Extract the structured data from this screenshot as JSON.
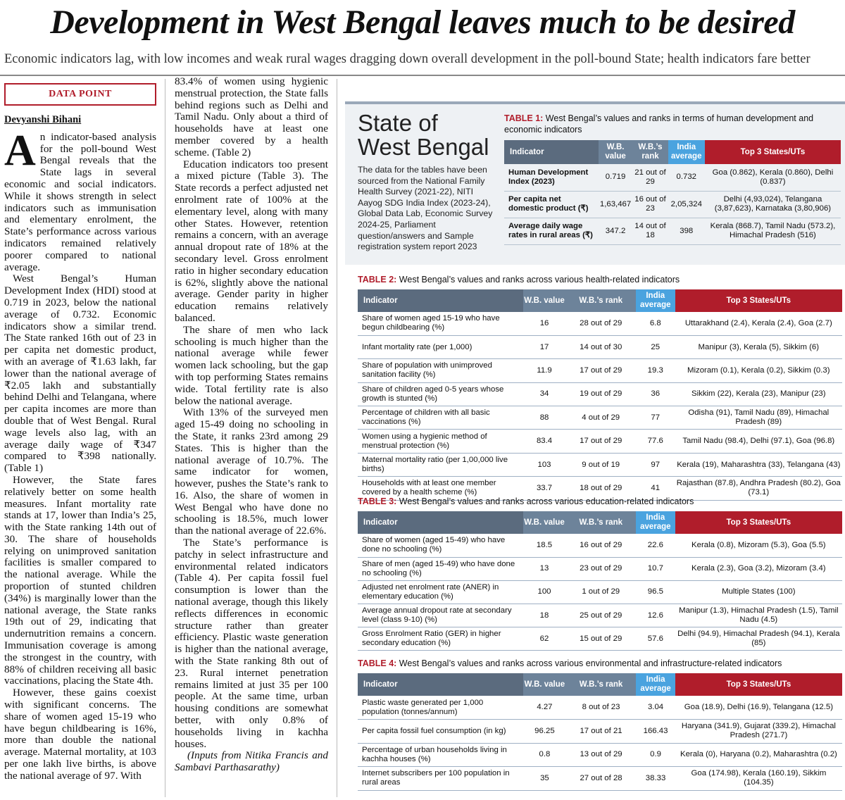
{
  "headline": "Development in West Bengal leaves much to be desired",
  "subhead": "Economic indicators lag, with low incomes and weak rural wages dragging down overall development in the poll-bound State; health indicators fare better",
  "datapoint_label": "DATA POINT",
  "byline": "Devyanshi Bihani",
  "dropcap": "A",
  "article": {
    "col1": [
      "n indicator-based analysis for the poll-bound West Bengal reveals that the State lags in several economic and social indicators. While it shows strength in select indicators such as immunisation and elementary enrolment, the State’s performance across various indicators remained relatively poorer compared to national average.",
      "West Bengal’s Human Development Index (HDI) stood at 0.719 in 2023, below the national average of 0.732. Economic indicators show a similar trend. The State ranked 16th out of 23 in per capita net domestic product, with an average of ₹1.63 lakh, far lower than the national average of ₹2.05 lakh and substantially behind Delhi and Telangana, where per capita incomes are more than double that of West Bengal. Rural wage levels also lag, with an average daily wage of ₹347 compared to ₹398 nationally. (Table 1)",
      "However, the State fares relatively better on some health measures. Infant mortality rate stands at 17, lower than India’s 25, with the State ranking 14th out of 30. The share of households relying on unimproved sanitation facilities is smaller compared to the national average. While the proportion of stunted children (34%) is marginally lower than the national average, the State ranks 19th out of 29, indicating that undernutrition remains a concern. Immunisation coverage is among the strongest in the country, with 88% of children receiving all basic vaccinations, placing the State 4th.",
      "However, these gains coexist with significant concerns. The share of women aged 15-19 who have begun childbearing is 16%, more than double the national average. Maternal mortality, at 103 per one lakh live births, is above the national average of 97. With"
    ],
    "col2": [
      "83.4% of women using hygienic menstrual protection, the State falls behind regions such as Delhi and Tamil Nadu. Only about a third of households have at least one member covered by a health scheme. (Table 2)",
      "Education indicators too present a mixed picture (Table 3). The State records a perfect adjusted net enrolment rate of 100% at the elementary level, along with many other States. However, retention remains a concern, with an average annual dropout rate of 18% at the secondary level. Gross enrolment ratio in higher secondary education is 62%, slightly above the national average. Gender parity in higher education remains relatively balanced.",
      "The share of men who lack schooling is much higher than the national average while fewer women lack schooling, but the gap with top performing States remains wide. Total fertility rate is also below the national average.",
      "With 13% of the surveyed men aged 15-49 doing no schooling in the State, it ranks 23rd among 29 States. This is higher than the national average of 10.7%. The same indicator for women, however, pushes the State’s rank to 16. Also, the share of women in West Bengal who have done no schooling is 18.5%, much lower than the national average of 22.6%.",
      "The State’s performance is patchy in select infrastructure and environmental related indicators (Table 4). Per capita fossil fuel consumption is lower than the national average, though this likely reflects differences in economic structure rather than greater efficiency. Plastic waste generation is higher than the national average, with the State ranking 8th out of 23. Rural internet penetration remains limited at just 35 per 100 people. At the same time, urban housing conditions are somewhat better, with only 0.8% of households living in kachha houses."
    ],
    "credit": "(Inputs from Nitika Francis and Sambavi Parthasarathy)"
  },
  "panel": {
    "title_line1": "State of",
    "title_line2": "West Bengal",
    "description": "The data for the tables have been sourced from the National Family Health Survey (2021-22), NITI Aayog SDG India Index (2023-24), Global Data Lab, Economic Survey 2024-25, Parliament question/answers and Sample registration system report 2023"
  },
  "table1": {
    "label": "TABLE 1:",
    "caption": " West Bengal’s values and ranks in terms of human development and economic indicators",
    "headers": [
      "Indicator",
      "W.B. value",
      "W.B.’s rank",
      "India average",
      "Top 3 States/UTs"
    ],
    "rows": [
      [
        "Human Development Index (2023)",
        "0.719",
        "21 out of 29",
        "0.732",
        "Goa (0.862), Kerala (0.860), Delhi (0.837)"
      ],
      [
        "Per capita net domestic product (₹)",
        "1,63,467",
        "16 out of 23",
        "2,05,324",
        "Delhi (4,93,024), Telangana (3,87,623), Karnataka (3,80,906)"
      ],
      [
        "Average daily wage rates in rural areas (₹)",
        "347.2",
        "14 out of 18",
        "398",
        "Kerala (868.7), Tamil Nadu (573.2), Himachal Pradesh (516)"
      ]
    ]
  },
  "table2": {
    "label": "TABLE 2:",
    "caption": " West Bengal’s values and ranks across various health-related indicators",
    "headers": [
      "Indicator",
      "W.B. value",
      "W.B.’s rank",
      "India average",
      "Top 3 States/UTs"
    ],
    "rows": [
      [
        "Share of women aged 15-19 who have begun childbearing (%)",
        "16",
        "28 out of 29",
        "6.8",
        "Uttarakhand (2.4), Kerala (2.4), Goa (2.7)"
      ],
      [
        "Infant mortality rate (per 1,000)",
        "17",
        "14 out of 30",
        "25",
        "Manipur (3), Kerala (5), Sikkim (6)"
      ],
      [
        "Share of population with unimproved sanitation facility (%)",
        "11.9",
        "17 out of 29",
        "19.3",
        "Mizoram (0.1), Kerala (0.2), Sikkim (0.3)"
      ],
      [
        "Share of children aged 0-5 years whose growth is stunted (%)",
        "34",
        "19 out of 29",
        "36",
        "Sikkim (22), Kerala (23), Manipur (23)"
      ],
      [
        "Percentage of children with all basic vaccinations (%)",
        "88",
        "4 out of 29",
        "77",
        "Odisha (91), Tamil Nadu (89), Himachal Pradesh (89)"
      ],
      [
        "Women using a hygienic method of menstrual protection (%)",
        "83.4",
        "17 out of 29",
        "77.6",
        "Tamil Nadu (98.4), Delhi (97.1), Goa (96.8)"
      ],
      [
        "Maternal mortality ratio (per 1,00,000 live births)",
        "103",
        "9 out of 19",
        "97",
        "Kerala (19), Maharashtra (33), Telangana (43)"
      ],
      [
        "Households with at least one member covered by a health scheme (%)",
        "33.7",
        "18 out of 29",
        "41",
        "Rajasthan (87.8), Andhra Pradesh (80.2), Goa (73.1)"
      ]
    ]
  },
  "table3": {
    "label": "TABLE 3:",
    "caption": " West Bengal’s values and ranks across various education-related indicators",
    "headers": [
      "Indicator",
      "W.B. value",
      "W.B.’s rank",
      "India average",
      "Top 3 States/UTs"
    ],
    "rows": [
      [
        "Share of women (aged 15-49) who have done no schooling (%)",
        "18.5",
        "16 out of 29",
        "22.6",
        "Kerala (0.8), Mizoram (5.3), Goa (5.5)"
      ],
      [
        "Share of men (aged 15-49) who have done no schooling (%)",
        "13",
        "23 out of 29",
        "10.7",
        "Kerala (2.3), Goa (3.2), Mizoram (3.4)"
      ],
      [
        "Adjusted net enrolment rate (ANER) in elementary education (%)",
        "100",
        "1 out of 29",
        "96.5",
        "Multiple States (100)"
      ],
      [
        "Average annual dropout rate at secondary level (class 9-10) (%)",
        "18",
        "25 out of 29",
        "12.6",
        "Manipur (1.3), Himachal Pradesh (1.5), Tamil Nadu (4.5)"
      ],
      [
        "Gross Enrolment Ratio (GER) in higher secondary education (%)",
        "62",
        "15 out of 29",
        "57.6",
        "Delhi (94.9), Himachal Pradesh (94.1), Kerala (85)"
      ]
    ]
  },
  "table4": {
    "label": "TABLE 4:",
    "caption": " West Bengal’s values and ranks across various environmental and infrastructure-related indicators",
    "headers": [
      "Indicator",
      "W.B. value",
      "W.B.’s rank",
      "India average",
      "Top 3 States/UTs"
    ],
    "rows": [
      [
        "Plastic waste generated per 1,000 population (tonnes/annum)",
        "4.27",
        "8 out of 23",
        "3.04",
        "Goa (18.9), Delhi (16.9), Telangana (12.5)"
      ],
      [
        "Per capita fossil fuel consumption (in kg)",
        "96.25",
        "17 out of 21",
        "166.43",
        "Haryana (341.9), Gujarat (339.2), Himachal Pradesh (271.7)"
      ],
      [
        "Percentage of urban households living in kachha houses (%)",
        "0.8",
        "13 out of 29",
        "0.9",
        "Kerala (0), Haryana (0.2), Maharashtra (0.2)"
      ],
      [
        "Internet subscribers per 100 population in rural areas",
        "35",
        "27 out of 28",
        "38.33",
        "Goa (174.98), Kerala (160.19), Sikkim (104.35)"
      ]
    ]
  }
}
